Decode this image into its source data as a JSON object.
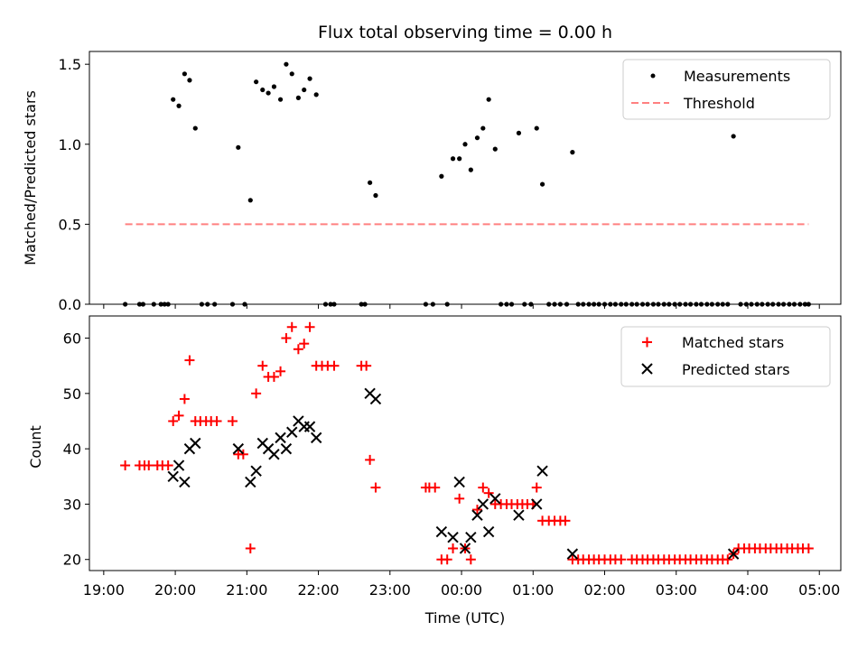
{
  "chart_data": [
    {
      "type": "scatter",
      "title": "Flux total observing time = 0.00 h",
      "xlabel": "",
      "ylabel": "Matched/Predicted stars",
      "xlim": [
        18.8,
        29.3
      ],
      "ylim": [
        0,
        1.58
      ],
      "yticks": [
        0.0,
        0.5,
        1.0,
        1.5
      ],
      "ytick_labels": [
        "0.0",
        "0.5",
        "1.0",
        "1.5"
      ],
      "legend": {
        "placement": "top-right",
        "entries": [
          {
            "label": "Measurements",
            "marker": "dot",
            "color": "#000000"
          },
          {
            "label": "Threshold",
            "marker": "dashed-line",
            "color": "#ff8080"
          }
        ]
      },
      "series": [
        {
          "name": "Measurements",
          "marker": "dot",
          "color": "#000000",
          "points": [
            [
              19.3,
              0
            ],
            [
              19.5,
              0
            ],
            [
              19.55,
              0
            ],
            [
              19.7,
              0
            ],
            [
              19.8,
              0
            ],
            [
              19.85,
              0
            ],
            [
              19.9,
              0
            ],
            [
              19.97,
              1.28
            ],
            [
              20.05,
              1.24
            ],
            [
              20.13,
              1.44
            ],
            [
              20.2,
              1.4
            ],
            [
              20.28,
              1.1
            ],
            [
              20.37,
              0
            ],
            [
              20.45,
              0
            ],
            [
              20.55,
              0
            ],
            [
              20.8,
              0
            ],
            [
              20.88,
              0.98
            ],
            [
              20.97,
              0
            ],
            [
              21.05,
              0.65
            ],
            [
              21.13,
              1.39
            ],
            [
              21.22,
              1.34
            ],
            [
              21.3,
              1.32
            ],
            [
              21.38,
              1.36
            ],
            [
              21.47,
              1.28
            ],
            [
              21.55,
              1.5
            ],
            [
              21.63,
              1.44
            ],
            [
              21.72,
              1.29
            ],
            [
              21.8,
              1.34
            ],
            [
              21.88,
              1.41
            ],
            [
              21.97,
              1.31
            ],
            [
              22.1,
              0
            ],
            [
              22.17,
              0
            ],
            [
              22.22,
              0
            ],
            [
              22.6,
              0
            ],
            [
              22.65,
              0
            ],
            [
              22.72,
              0.76
            ],
            [
              22.8,
              0.68
            ],
            [
              23.5,
              0
            ],
            [
              23.6,
              0
            ],
            [
              23.72,
              0.8
            ],
            [
              23.8,
              0
            ],
            [
              23.88,
              0.91
            ],
            [
              23.97,
              0.91
            ],
            [
              24.05,
              1.0
            ],
            [
              24.13,
              0.84
            ],
            [
              24.22,
              1.04
            ],
            [
              24.3,
              1.1
            ],
            [
              24.38,
              1.28
            ],
            [
              24.47,
              0.97
            ],
            [
              24.55,
              0
            ],
            [
              24.63,
              0
            ],
            [
              24.7,
              0
            ],
            [
              24.8,
              1.07
            ],
            [
              24.88,
              0
            ],
            [
              24.97,
              0
            ],
            [
              25.05,
              1.1
            ],
            [
              25.13,
              0.75
            ],
            [
              25.22,
              0
            ],
            [
              25.3,
              0
            ],
            [
              25.38,
              0
            ],
            [
              25.47,
              0
            ],
            [
              25.55,
              0.95
            ],
            [
              25.63,
              0
            ],
            [
              25.7,
              0
            ],
            [
              25.78,
              0
            ],
            [
              25.85,
              0
            ],
            [
              25.92,
              0
            ],
            [
              26.0,
              0
            ],
            [
              26.08,
              0
            ],
            [
              26.15,
              0
            ],
            [
              26.23,
              0
            ],
            [
              26.3,
              0
            ],
            [
              26.38,
              0
            ],
            [
              26.45,
              0
            ],
            [
              26.53,
              0
            ],
            [
              26.6,
              0
            ],
            [
              26.68,
              0
            ],
            [
              26.75,
              0
            ],
            [
              26.83,
              0
            ],
            [
              26.9,
              0
            ],
            [
              26.98,
              0
            ],
            [
              27.05,
              0
            ],
            [
              27.13,
              0
            ],
            [
              27.2,
              0
            ],
            [
              27.28,
              0
            ],
            [
              27.35,
              0
            ],
            [
              27.43,
              0
            ],
            [
              27.5,
              0
            ],
            [
              27.58,
              0
            ],
            [
              27.65,
              0
            ],
            [
              27.72,
              0
            ],
            [
              27.8,
              1.05
            ],
            [
              27.9,
              0
            ],
            [
              27.98,
              0
            ],
            [
              28.05,
              0
            ],
            [
              28.13,
              0
            ],
            [
              28.2,
              0
            ],
            [
              28.28,
              0
            ],
            [
              28.35,
              0
            ],
            [
              28.43,
              0
            ],
            [
              28.5,
              0
            ],
            [
              28.58,
              0
            ],
            [
              28.65,
              0
            ],
            [
              28.73,
              0
            ],
            [
              28.8,
              0
            ],
            [
              28.85,
              0
            ]
          ]
        },
        {
          "name": "Threshold",
          "marker": "dashed-line",
          "color": "#ff8080",
          "points": [
            [
              19.3,
              0.5
            ],
            [
              28.85,
              0.5
            ]
          ]
        }
      ]
    },
    {
      "type": "scatter",
      "title": "",
      "xlabel": "Time (UTC)",
      "ylabel": "Count",
      "xlim": [
        18.8,
        29.3
      ],
      "ylim": [
        18,
        64
      ],
      "yticks": [
        20,
        30,
        40,
        50,
        60
      ],
      "ytick_labels": [
        "20",
        "30",
        "40",
        "50",
        "60"
      ],
      "xticks": [
        19,
        20,
        21,
        22,
        23,
        24,
        25,
        26,
        27,
        28,
        29
      ],
      "xtick_labels": [
        "19:00",
        "20:00",
        "21:00",
        "22:00",
        "23:00",
        "00:00",
        "01:00",
        "02:00",
        "03:00",
        "04:00",
        "05:00"
      ],
      "legend": {
        "placement": "top-right",
        "entries": [
          {
            "label": "Matched stars",
            "marker": "plus",
            "color": "#ff0000"
          },
          {
            "label": "Predicted stars",
            "marker": "x",
            "color": "#000000"
          }
        ]
      },
      "series": [
        {
          "name": "Matched stars",
          "marker": "plus",
          "color": "#ff0000",
          "points": [
            [
              19.3,
              37
            ],
            [
              19.5,
              37
            ],
            [
              19.57,
              37
            ],
            [
              19.63,
              37
            ],
            [
              19.75,
              37
            ],
            [
              19.82,
              37
            ],
            [
              19.9,
              37
            ],
            [
              19.97,
              45
            ],
            [
              20.05,
              46
            ],
            [
              20.13,
              49
            ],
            [
              20.2,
              56
            ],
            [
              20.28,
              45
            ],
            [
              20.35,
              45
            ],
            [
              20.43,
              45
            ],
            [
              20.5,
              45
            ],
            [
              20.58,
              45
            ],
            [
              20.8,
              45
            ],
            [
              20.88,
              39
            ],
            [
              20.95,
              39
            ],
            [
              21.05,
              22
            ],
            [
              21.13,
              50
            ],
            [
              21.22,
              55
            ],
            [
              21.3,
              53
            ],
            [
              21.38,
              53
            ],
            [
              21.47,
              54
            ],
            [
              21.55,
              60
            ],
            [
              21.63,
              62
            ],
            [
              21.72,
              58
            ],
            [
              21.8,
              59
            ],
            [
              21.88,
              62
            ],
            [
              21.97,
              55
            ],
            [
              22.05,
              55
            ],
            [
              22.13,
              55
            ],
            [
              22.22,
              55
            ],
            [
              22.6,
              55
            ],
            [
              22.67,
              55
            ],
            [
              22.72,
              38
            ],
            [
              22.8,
              33
            ],
            [
              23.5,
              33
            ],
            [
              23.55,
              33
            ],
            [
              23.63,
              33
            ],
            [
              23.72,
              20
            ],
            [
              23.8,
              20
            ],
            [
              23.88,
              22
            ],
            [
              23.97,
              31
            ],
            [
              24.05,
              22
            ],
            [
              24.13,
              20
            ],
            [
              24.22,
              29
            ],
            [
              24.3,
              33
            ],
            [
              24.38,
              32
            ],
            [
              24.47,
              30
            ],
            [
              24.55,
              30
            ],
            [
              24.63,
              30
            ],
            [
              24.7,
              30
            ],
            [
              24.78,
              30
            ],
            [
              24.85,
              30
            ],
            [
              24.92,
              30
            ],
            [
              25.0,
              30
            ],
            [
              25.05,
              33
            ],
            [
              25.13,
              27
            ],
            [
              25.22,
              27
            ],
            [
              25.3,
              27
            ],
            [
              25.38,
              27
            ],
            [
              25.45,
              27
            ],
            [
              25.55,
              20
            ],
            [
              25.63,
              20
            ],
            [
              25.7,
              20
            ],
            [
              25.78,
              20
            ],
            [
              25.85,
              20
            ],
            [
              25.92,
              20
            ],
            [
              26.0,
              20
            ],
            [
              26.08,
              20
            ],
            [
              26.15,
              20
            ],
            [
              26.23,
              20
            ],
            [
              26.38,
              20
            ],
            [
              26.45,
              20
            ],
            [
              26.53,
              20
            ],
            [
              26.6,
              20
            ],
            [
              26.68,
              20
            ],
            [
              26.75,
              20
            ],
            [
              26.83,
              20
            ],
            [
              26.9,
              20
            ],
            [
              26.98,
              20
            ],
            [
              27.05,
              20
            ],
            [
              27.13,
              20
            ],
            [
              27.2,
              20
            ],
            [
              27.28,
              20
            ],
            [
              27.35,
              20
            ],
            [
              27.43,
              20
            ],
            [
              27.5,
              20
            ],
            [
              27.58,
              20
            ],
            [
              27.65,
              20
            ],
            [
              27.72,
              20
            ],
            [
              27.8,
              21
            ],
            [
              27.87,
              22
            ],
            [
              27.95,
              22
            ],
            [
              28.02,
              22
            ],
            [
              28.1,
              22
            ],
            [
              28.17,
              22
            ],
            [
              28.25,
              22
            ],
            [
              28.32,
              22
            ],
            [
              28.4,
              22
            ],
            [
              28.47,
              22
            ],
            [
              28.55,
              22
            ],
            [
              28.62,
              22
            ],
            [
              28.7,
              22
            ],
            [
              28.77,
              22
            ],
            [
              28.85,
              22
            ]
          ]
        },
        {
          "name": "Predicted stars",
          "marker": "x",
          "color": "#000000",
          "points": [
            [
              19.97,
              35
            ],
            [
              20.05,
              37
            ],
            [
              20.13,
              34
            ],
            [
              20.2,
              40
            ],
            [
              20.28,
              41
            ],
            [
              20.88,
              40
            ],
            [
              21.05,
              34
            ],
            [
              21.13,
              36
            ],
            [
              21.22,
              41
            ],
            [
              21.3,
              40
            ],
            [
              21.38,
              39
            ],
            [
              21.47,
              42
            ],
            [
              21.55,
              40
            ],
            [
              21.63,
              43
            ],
            [
              21.72,
              45
            ],
            [
              21.8,
              44
            ],
            [
              21.88,
              44
            ],
            [
              21.97,
              42
            ],
            [
              22.72,
              50
            ],
            [
              22.8,
              49
            ],
            [
              23.72,
              25
            ],
            [
              23.88,
              24
            ],
            [
              23.97,
              34
            ],
            [
              24.05,
              22
            ],
            [
              24.13,
              24
            ],
            [
              24.22,
              28
            ],
            [
              24.3,
              30
            ],
            [
              24.38,
              25
            ],
            [
              24.47,
              31
            ],
            [
              24.8,
              28
            ],
            [
              25.05,
              30
            ],
            [
              25.13,
              36
            ],
            [
              25.55,
              21
            ],
            [
              27.8,
              21
            ]
          ]
        }
      ]
    }
  ]
}
